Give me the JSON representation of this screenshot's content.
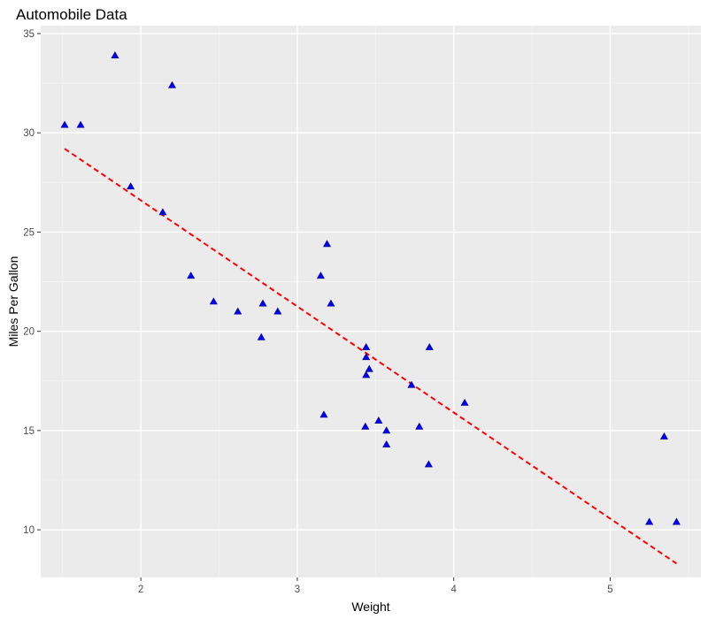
{
  "chart_data": {
    "type": "scatter",
    "title": "Automobile Data",
    "xlabel": "Weight",
    "ylabel": "Miles Per Gallon",
    "xlim": [
      1.36,
      5.58
    ],
    "ylim": [
      7.6,
      35.4
    ],
    "x_ticks": [
      2,
      3,
      4,
      5
    ],
    "y_ticks": [
      10,
      15,
      20,
      25,
      30,
      35
    ],
    "x_tick_labels": [
      "2",
      "3",
      "4",
      "5"
    ],
    "y_tick_labels": [
      "10",
      "15",
      "20",
      "25",
      "30",
      "35"
    ],
    "grid": true,
    "legend": "none",
    "colors": {
      "panel_background": "#ebebeb",
      "grid_major": "#ffffff",
      "grid_minor": "#f5f5f5",
      "points": "#0000ff",
      "trend_line": "#ff0000"
    },
    "points": [
      {
        "x": 2.62,
        "y": 21.0
      },
      {
        "x": 2.875,
        "y": 21.0
      },
      {
        "x": 2.32,
        "y": 22.8
      },
      {
        "x": 3.215,
        "y": 21.4
      },
      {
        "x": 3.44,
        "y": 18.7
      },
      {
        "x": 3.46,
        "y": 18.1
      },
      {
        "x": 3.57,
        "y": 14.3
      },
      {
        "x": 3.19,
        "y": 24.4
      },
      {
        "x": 3.15,
        "y": 22.8
      },
      {
        "x": 3.44,
        "y": 19.2
      },
      {
        "x": 3.44,
        "y": 17.8
      },
      {
        "x": 4.07,
        "y": 16.4
      },
      {
        "x": 3.73,
        "y": 17.3
      },
      {
        "x": 3.78,
        "y": 15.2
      },
      {
        "x": 5.25,
        "y": 10.4
      },
      {
        "x": 5.424,
        "y": 10.4
      },
      {
        "x": 5.345,
        "y": 14.7
      },
      {
        "x": 2.2,
        "y": 32.4
      },
      {
        "x": 1.615,
        "y": 30.4
      },
      {
        "x": 1.835,
        "y": 33.9
      },
      {
        "x": 2.465,
        "y": 21.5
      },
      {
        "x": 3.52,
        "y": 15.5
      },
      {
        "x": 3.435,
        "y": 15.2
      },
      {
        "x": 3.84,
        "y": 13.3
      },
      {
        "x": 3.845,
        "y": 19.2
      },
      {
        "x": 1.935,
        "y": 27.3
      },
      {
        "x": 2.14,
        "y": 26.0
      },
      {
        "x": 1.513,
        "y": 30.4
      },
      {
        "x": 3.17,
        "y": 15.8
      },
      {
        "x": 2.77,
        "y": 19.7
      },
      {
        "x": 3.57,
        "y": 15.0
      },
      {
        "x": 2.78,
        "y": 21.4
      }
    ],
    "trend_line": {
      "style": "dashed",
      "points": [
        {
          "x": 1.513,
          "y": 29.2
        },
        {
          "x": 5.424,
          "y": 8.3
        }
      ]
    }
  }
}
